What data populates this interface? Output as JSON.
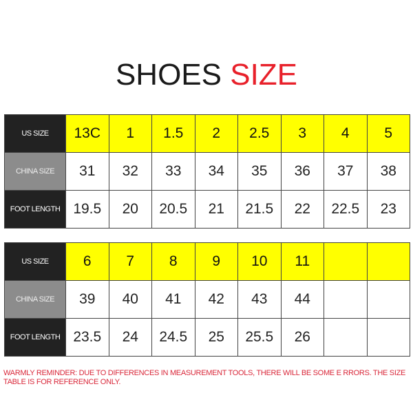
{
  "title": {
    "part1": "SHOES ",
    "part2": "SIZE"
  },
  "colors": {
    "accent_red": "#e8202a",
    "highlight_yellow": "#ffff00",
    "header_dark": "#222222",
    "header_gray": "#8c8c8c"
  },
  "row_labels": {
    "us": "US SIZE",
    "china": "CHINA SIZE",
    "foot": "FOOT LENGTH"
  },
  "tables": [
    {
      "us": [
        "13C",
        "1",
        "1.5",
        "2",
        "2.5",
        "3",
        "4",
        "5"
      ],
      "china": [
        "31",
        "32",
        "33",
        "34",
        "35",
        "36",
        "37",
        "38"
      ],
      "foot": [
        "19.5",
        "20",
        "20.5",
        "21",
        "21.5",
        "22",
        "22.5",
        "23"
      ]
    },
    {
      "us": [
        "6",
        "7",
        "8",
        "9",
        "10",
        "11",
        "",
        ""
      ],
      "china": [
        "39",
        "40",
        "41",
        "42",
        "43",
        "44",
        "",
        ""
      ],
      "foot": [
        "23.5",
        "24",
        "24.5",
        "25",
        "25.5",
        "26",
        "",
        ""
      ]
    }
  ],
  "reminder": "WARMLY REMINDER: DUE TO DIFFERENCES IN MEASUREMENT TOOLS, THERE WILL BE SOME E RRORS. THE SIZE TABLE IS FOR REFERENCE ONLY."
}
